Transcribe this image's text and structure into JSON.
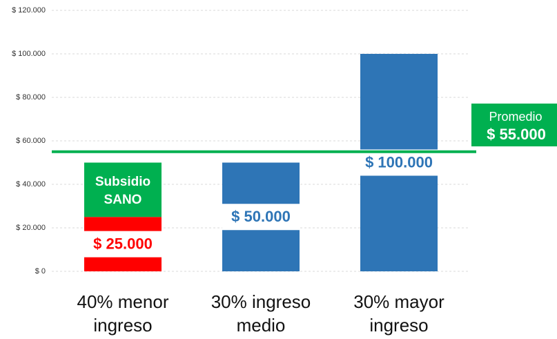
{
  "chart_data": {
    "type": "bar",
    "stacked": true,
    "categories": [
      "40% menor\ningreso",
      "30% ingreso\nmedio",
      "30% mayor\ningreso"
    ],
    "series": [
      {
        "colors": [
          "#ff0000",
          "#2e75b6",
          "#2e75b6"
        ],
        "values": [
          25000,
          50000,
          100000
        ],
        "value_labels": [
          "$ 25.000",
          "$ 50.000",
          "$ 100.000"
        ]
      },
      {
        "name": "Subsidio\nSANO",
        "color": "#00b050",
        "values": [
          25000,
          null,
          null
        ]
      }
    ],
    "ylim": [
      0,
      120000
    ],
    "yticks": [
      {
        "value": 0,
        "label": "$ 0"
      },
      {
        "value": 20000,
        "label": "$ 20.000"
      },
      {
        "value": 40000,
        "label": "$ 40.000"
      },
      {
        "value": 60000,
        "label": "$ 60.000"
      },
      {
        "value": 80000,
        "label": "$ 80.000"
      },
      {
        "value": 100000,
        "label": "$ 100.000"
      },
      {
        "value": 120000,
        "label": "$ 120.000"
      }
    ],
    "grid": true,
    "reference_lines": [
      {
        "value": 55000,
        "label": "Promedio",
        "value_label": "$ 55.000",
        "color": "#00b050"
      }
    ]
  }
}
